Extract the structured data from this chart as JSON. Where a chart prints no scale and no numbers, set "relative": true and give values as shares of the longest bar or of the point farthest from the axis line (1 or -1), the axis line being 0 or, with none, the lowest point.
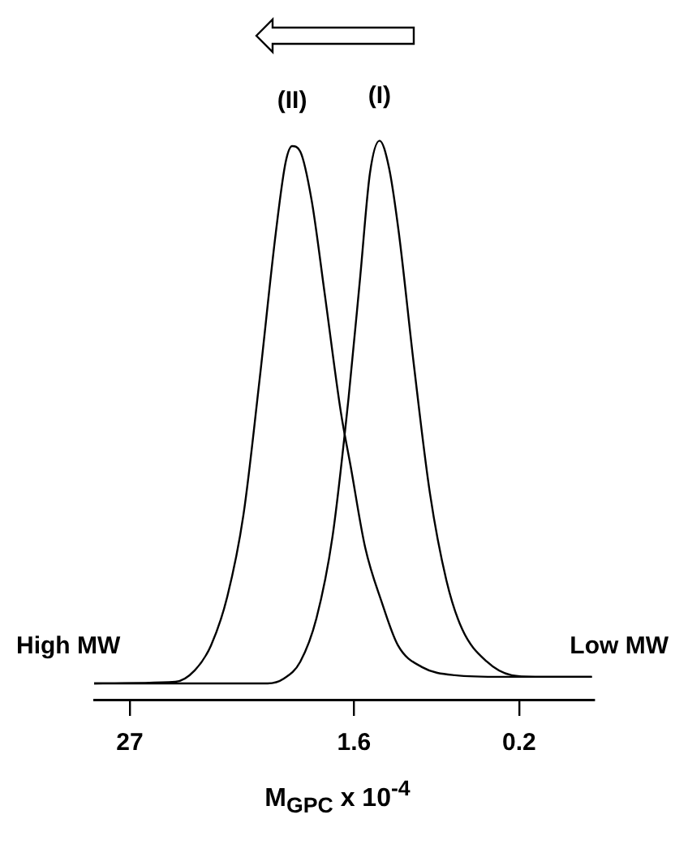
{
  "chart_data": {
    "type": "line",
    "relative": true,
    "log": "x",
    "xlabel": "M$_{GPC}$ x 10$^{-4}$",
    "xlim": [
      42.3,
      0.078
    ],
    "xticks": [
      27,
      1.6,
      0.2
    ],
    "grid": false,
    "legend": false,
    "marker": "none",
    "line_style": "solid",
    "tick_labels": "x",
    "annotations": [
      "High MW",
      "Low MW"
    ],
    "series": [
      {
        "name": "(I)",
        "color": "#000000",
        "x": [
          42.3,
          4.75,
          3.87,
          3.15,
          2.57,
          2.1,
          1.71,
          1.48,
          1.31,
          1.16,
          1.03,
          0.91,
          0.755,
          0.615,
          0.5,
          0.41,
          0.3,
          0.22,
          0.163,
          0.08
        ],
        "values": [
          0,
          0,
          0.009,
          0.04,
          0.12,
          0.27,
          0.53,
          0.75,
          0.94,
          1,
          0.95,
          0.83,
          0.59,
          0.35,
          0.19,
          0.1,
          0.04,
          0.015,
          0.012,
          0.012
        ]
      },
      {
        "name": "(II)",
        "color": "#000000",
        "x": [
          42.3,
          15.2,
          11.9,
          9.7,
          7.9,
          6.45,
          5.26,
          4.29,
          3.79,
          3.49,
          3.15,
          2.73,
          2.32,
          1.89,
          1.67,
          1.39,
          1.13,
          0.92,
          0.68,
          0.45,
          0.245,
          0.08
        ],
        "values": [
          0,
          0.003,
          0.024,
          0.07,
          0.16,
          0.31,
          0.56,
          0.83,
          0.96,
          0.99,
          0.98,
          0.89,
          0.72,
          0.5,
          0.4,
          0.25,
          0.15,
          0.07,
          0.03,
          0.015,
          0.012,
          0.012
        ]
      }
    ]
  }
}
